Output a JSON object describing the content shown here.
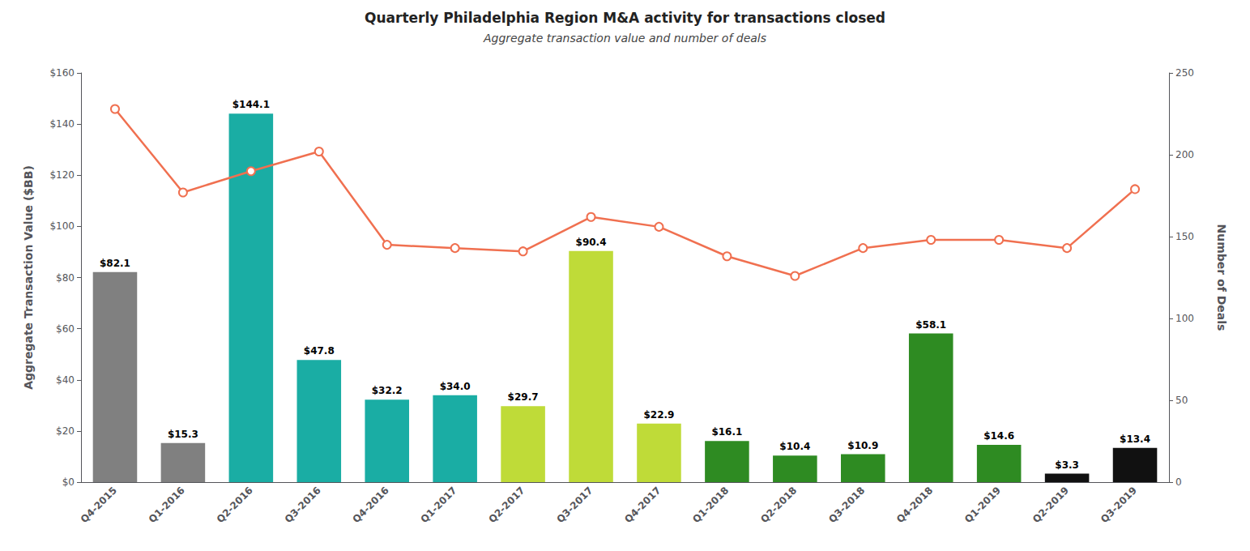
{
  "chart_data": {
    "type": "bar",
    "title": "Quarterly Philadelphia Region M&A activity for transactions closed",
    "subtitle": "Aggregate transaction value and number of deals",
    "categories": [
      "Q4-2015",
      "Q1-2016",
      "Q2-2016",
      "Q3-2016",
      "Q4-2016",
      "Q1-2017",
      "Q2-2017",
      "Q3-2017",
      "Q4-2017",
      "Q1-2018",
      "Q2-2018",
      "Q3-2018",
      "Q4-2018",
      "Q1-2019",
      "Q2-2019",
      "Q3-2019"
    ],
    "ylabel": "Aggregate Transaction Value ($BB)",
    "y2label": "Number of Deals",
    "ylim": [
      0,
      160
    ],
    "yticks": [
      {
        "value": 0,
        "label": "$0"
      },
      {
        "value": 20,
        "label": "$20"
      },
      {
        "value": 40,
        "label": "$40"
      },
      {
        "value": 60,
        "label": "$60"
      },
      {
        "value": 80,
        "label": "$80"
      },
      {
        "value": 100,
        "label": "$100"
      },
      {
        "value": 120,
        "label": "$120"
      },
      {
        "value": 140,
        "label": "$140"
      },
      {
        "value": 160,
        "label": "$160"
      }
    ],
    "y2lim": [
      0,
      250
    ],
    "y2ticks": [
      0,
      50,
      100,
      150,
      200,
      250
    ],
    "grid": false,
    "series": [
      {
        "type": "bar",
        "colors": [
          "#808080",
          "#808080",
          "#1AADA4",
          "#1AADA4",
          "#1AADA4",
          "#1AADA4",
          "#BFDB38",
          "#BFDB38",
          "#BFDB38",
          "#2E8B22",
          "#2E8B22",
          "#2E8B22",
          "#2E8B22",
          "#2E8B22",
          "#111111",
          "#111111"
        ],
        "values": [
          82.1,
          15.3,
          144.1,
          47.8,
          32.2,
          34.0,
          29.7,
          90.4,
          22.9,
          16.1,
          10.4,
          10.9,
          58.1,
          14.6,
          3.3,
          13.4
        ],
        "value_labels": [
          "$82.1",
          "$15.3",
          "$144.1",
          "$47.8",
          "$32.2",
          "$34.0",
          "$29.7",
          "$90.4",
          "$22.9",
          "$16.1",
          "$10.4",
          "$10.9",
          "$58.1",
          "$14.6",
          "$3.3",
          "$13.4"
        ],
        "data_labels": true
      },
      {
        "type": "line",
        "axis": "y2",
        "color": "#F07050",
        "marker": "circle",
        "values": [
          228,
          177,
          190,
          202,
          145,
          143,
          141,
          162,
          156,
          138,
          126,
          143,
          148,
          148,
          143,
          179
        ]
      }
    ]
  }
}
